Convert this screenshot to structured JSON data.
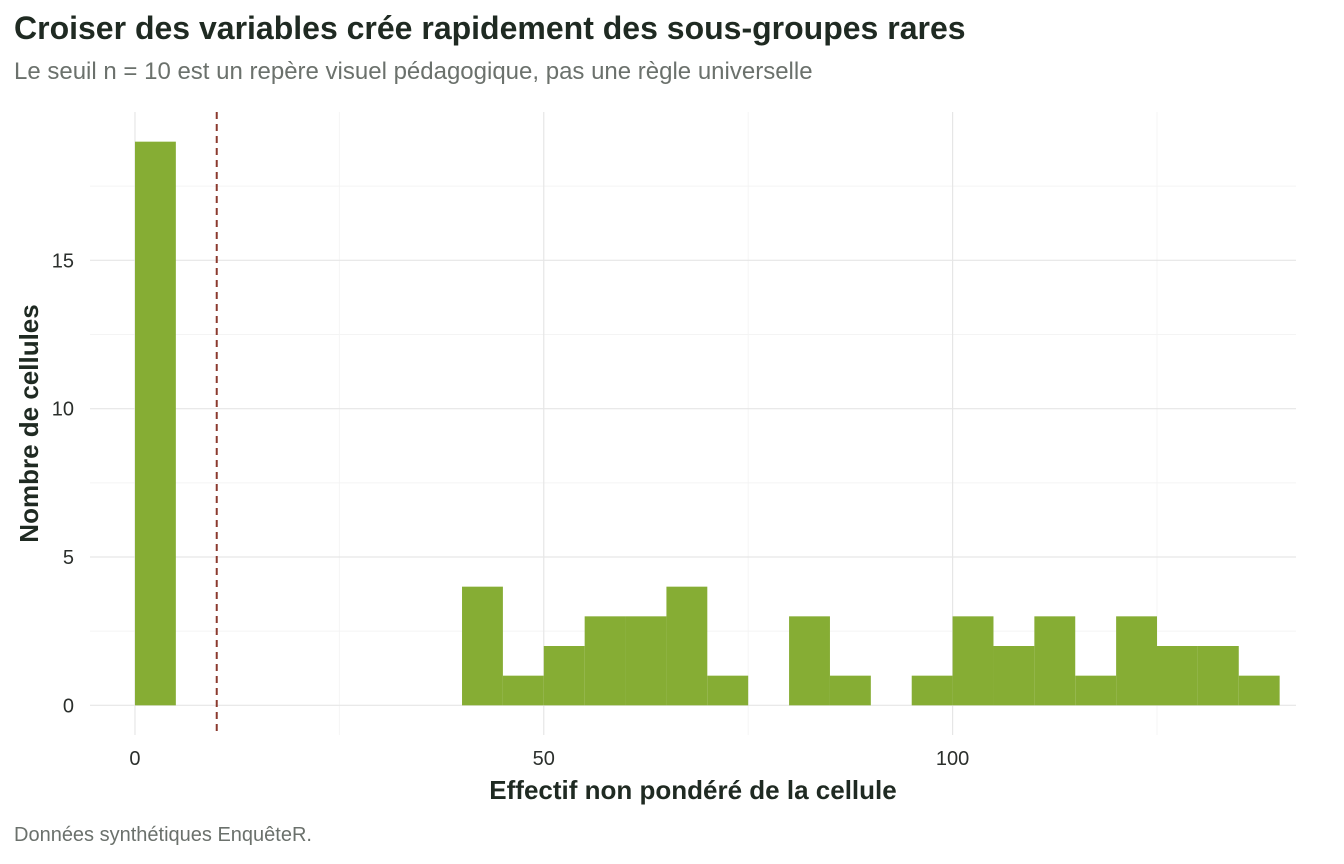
{
  "chart_data": {
    "type": "bar",
    "title": "Croiser des variables crée rapidement des sous-groupes rares",
    "subtitle": "Le seuil n = 10 est un repère visuel pédagogique, pas une règle universelle",
    "caption": "Données synthétiques EnquêteR.",
    "xlabel": "Effectif non pondéré de la cellule",
    "ylabel": "Nombre de cellules",
    "xlim": [
      -5.5,
      142
    ],
    "ylim": [
      -1,
      20
    ],
    "x_ticks": [
      0,
      50,
      100
    ],
    "y_ticks": [
      0,
      5,
      10,
      15
    ],
    "grid": true,
    "bar_color": "#86ad34",
    "threshold": {
      "x": 10,
      "color": "#8b3a2e",
      "style": "dashed"
    },
    "bins": [
      {
        "x0": 0,
        "x1": 5,
        "count": 19
      },
      {
        "x0": 40,
        "x1": 45,
        "count": 4
      },
      {
        "x0": 45,
        "x1": 50,
        "count": 1
      },
      {
        "x0": 50,
        "x1": 55,
        "count": 2
      },
      {
        "x0": 55,
        "x1": 60,
        "count": 3
      },
      {
        "x0": 60,
        "x1": 65,
        "count": 3
      },
      {
        "x0": 65,
        "x1": 70,
        "count": 4
      },
      {
        "x0": 70,
        "x1": 75,
        "count": 1
      },
      {
        "x0": 80,
        "x1": 85,
        "count": 3
      },
      {
        "x0": 85,
        "x1": 90,
        "count": 1
      },
      {
        "x0": 95,
        "x1": 100,
        "count": 1
      },
      {
        "x0": 100,
        "x1": 105,
        "count": 3
      },
      {
        "x0": 105,
        "x1": 110,
        "count": 2
      },
      {
        "x0": 110,
        "x1": 115,
        "count": 3
      },
      {
        "x0": 115,
        "x1": 120,
        "count": 1
      },
      {
        "x0": 120,
        "x1": 125,
        "count": 3
      },
      {
        "x0": 125,
        "x1": 130,
        "count": 2
      },
      {
        "x0": 130,
        "x1": 135,
        "count": 2
      },
      {
        "x0": 135,
        "x1": 140,
        "count": 1
      }
    ]
  }
}
